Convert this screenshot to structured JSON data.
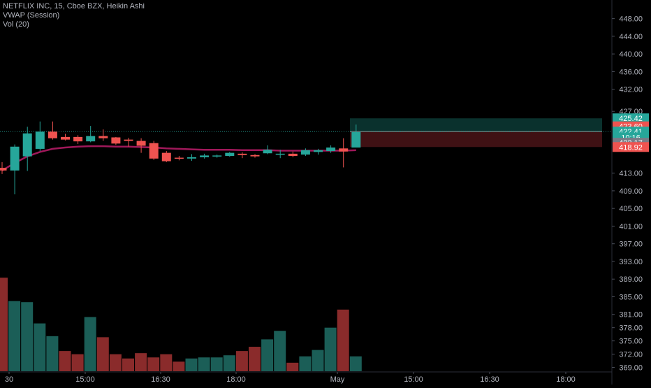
{
  "legend": {
    "symbol_line": "NETFLIX INC, 15, Cboe BZX, Heikin Ashi",
    "vwap_line": "VWAP (Session)",
    "vol_line": "Vol (20)"
  },
  "colors": {
    "background": "#000000",
    "up": "#26a69a",
    "down": "#ef5350",
    "vol_up": "#1b5e57",
    "vol_down": "#8a2b2b",
    "vwap": "#a0185a",
    "axis_text": "#b2b5be",
    "grid_line": "#2a2e39"
  },
  "chart_data": {
    "type": "candlestick",
    "title": "NETFLIX INC, 15, Cboe BZX, Heikin Ashi",
    "y_axis": {
      "range": [
        367.5,
        450
      ],
      "ticks": [
        "448.00",
        "444.00",
        "440.00",
        "436.00",
        "432.00",
        "427.00",
        "413.00",
        "409.00",
        "405.00",
        "401.00",
        "397.00",
        "393.00",
        "389.00",
        "385.00",
        "381.00",
        "378.00",
        "375.00",
        "372.00",
        "369.00"
      ]
    },
    "x_axis": {
      "tick_labels": [
        "30",
        "15:00",
        "16:30",
        "18:00",
        "May",
        "15:00",
        "16:30",
        "18:00"
      ]
    },
    "candles": [
      {
        "open": 414.2,
        "high": 415.5,
        "low": 412.8,
        "close": 413.6
      },
      {
        "open": 413.6,
        "high": 419.5,
        "low": 408.2,
        "close": 419.0
      },
      {
        "open": 416.8,
        "high": 423.5,
        "low": 413.5,
        "close": 422.0
      },
      {
        "open": 418.5,
        "high": 424.7,
        "low": 418.0,
        "close": 422.4
      },
      {
        "open": 422.4,
        "high": 424.7,
        "low": 420.6,
        "close": 420.9
      },
      {
        "open": 421.2,
        "high": 421.9,
        "low": 420.4,
        "close": 420.6
      },
      {
        "open": 421.2,
        "high": 421.6,
        "low": 419.6,
        "close": 420.2
      },
      {
        "open": 420.2,
        "high": 423.7,
        "low": 420.0,
        "close": 421.4
      },
      {
        "open": 421.4,
        "high": 422.9,
        "low": 420.3,
        "close": 420.9
      },
      {
        "open": 421.1,
        "high": 421.2,
        "low": 419.4,
        "close": 419.7
      },
      {
        "open": 420.6,
        "high": 421.0,
        "low": 419.0,
        "close": 420.3
      },
      {
        "open": 420.3,
        "high": 420.9,
        "low": 417.6,
        "close": 419.2
      },
      {
        "open": 419.8,
        "high": 420.3,
        "low": 416.0,
        "close": 416.3
      },
      {
        "open": 417.6,
        "high": 418.0,
        "low": 415.5,
        "close": 415.7
      },
      {
        "open": 416.5,
        "high": 416.9,
        "low": 415.9,
        "close": 416.3
      },
      {
        "open": 416.3,
        "high": 417.3,
        "low": 415.8,
        "close": 416.6
      },
      {
        "open": 416.6,
        "high": 417.4,
        "low": 416.3,
        "close": 417.0
      },
      {
        "open": 416.9,
        "high": 417.2,
        "low": 416.5,
        "close": 417.0
      },
      {
        "open": 416.9,
        "high": 417.8,
        "low": 416.7,
        "close": 417.6
      },
      {
        "open": 417.4,
        "high": 417.7,
        "low": 416.4,
        "close": 417.1
      },
      {
        "open": 417.1,
        "high": 417.3,
        "low": 416.5,
        "close": 416.8
      },
      {
        "open": 417.5,
        "high": 419.3,
        "low": 417.3,
        "close": 418.3
      },
      {
        "open": 417.4,
        "high": 418.3,
        "low": 416.4,
        "close": 417.4
      },
      {
        "open": 417.4,
        "high": 417.9,
        "low": 416.6,
        "close": 416.9
      },
      {
        "open": 417.2,
        "high": 418.6,
        "low": 416.9,
        "close": 418.2
      },
      {
        "open": 417.8,
        "high": 418.5,
        "low": 417.2,
        "close": 418.2
      },
      {
        "open": 418.0,
        "high": 419.3,
        "low": 417.6,
        "close": 418.8
      },
      {
        "open": 418.6,
        "high": 420.9,
        "low": 414.3,
        "close": 417.9
      },
      {
        "open": 418.8,
        "high": 424.0,
        "low": 418.8,
        "close": 422.3
      }
    ],
    "vwap": [
      413.6,
      415.3,
      416.8,
      417.8,
      418.5,
      418.8,
      419.0,
      419.1,
      419.1,
      419.0,
      419.0,
      418.9,
      418.8,
      418.6,
      418.5,
      418.4,
      418.3,
      418.3,
      418.3,
      418.2,
      418.2,
      418.2,
      418.1,
      418.1,
      418.1,
      418.1,
      418.1,
      418.1,
      418.2
    ],
    "volume": [
      {
        "value": 88,
        "dir": "down"
      },
      {
        "value": 66,
        "dir": "up"
      },
      {
        "value": 65,
        "dir": "up"
      },
      {
        "value": 45,
        "dir": "up"
      },
      {
        "value": 33,
        "dir": "up"
      },
      {
        "value": 19,
        "dir": "down"
      },
      {
        "value": 16,
        "dir": "down"
      },
      {
        "value": 51,
        "dir": "up"
      },
      {
        "value": 32,
        "dir": "down"
      },
      {
        "value": 16,
        "dir": "down"
      },
      {
        "value": 12,
        "dir": "down"
      },
      {
        "value": 17,
        "dir": "down"
      },
      {
        "value": 13,
        "dir": "down"
      },
      {
        "value": 16,
        "dir": "down"
      },
      {
        "value": 9,
        "dir": "down"
      },
      {
        "value": 12,
        "dir": "up"
      },
      {
        "value": 13,
        "dir": "up"
      },
      {
        "value": 13,
        "dir": "up"
      },
      {
        "value": 15,
        "dir": "up"
      },
      {
        "value": 19,
        "dir": "down"
      },
      {
        "value": 23,
        "dir": "down"
      },
      {
        "value": 30,
        "dir": "up"
      },
      {
        "value": 38,
        "dir": "up"
      },
      {
        "value": 8,
        "dir": "down"
      },
      {
        "value": 14,
        "dir": "up"
      },
      {
        "value": 20,
        "dir": "up"
      },
      {
        "value": 41,
        "dir": "up"
      },
      {
        "value": 58,
        "dir": "down"
      },
      {
        "value": 14,
        "dir": "up"
      }
    ],
    "last_price": 422.41,
    "position_box": {
      "entry": 422.41,
      "target": 425.42,
      "stop": 418.92
    },
    "price_labels": [
      {
        "text": "425.42",
        "kind": "up",
        "price": 425.42
      },
      {
        "text": "423.60",
        "kind": "down",
        "price": 423.6
      },
      {
        "text": "422.41",
        "kind": "up",
        "price": 422.41
      },
      {
        "text": "10:16",
        "kind": "up",
        "price": 421.1
      },
      {
        "text": "422.17",
        "kind": "neutral",
        "price": 419.9
      },
      {
        "text": "418.92",
        "kind": "down",
        "price": 418.92
      }
    ]
  }
}
